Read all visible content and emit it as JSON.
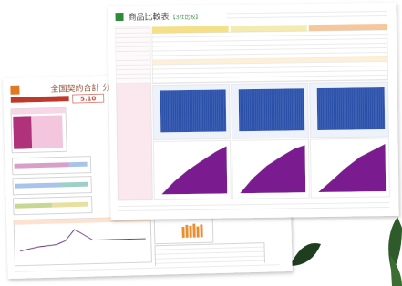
{
  "front_sheet": {
    "title": "商品比較表",
    "subtitle": "【3社比較】"
  },
  "back_sheet": {
    "title": "全国契約合計 分析シート",
    "value": "5.10"
  }
}
